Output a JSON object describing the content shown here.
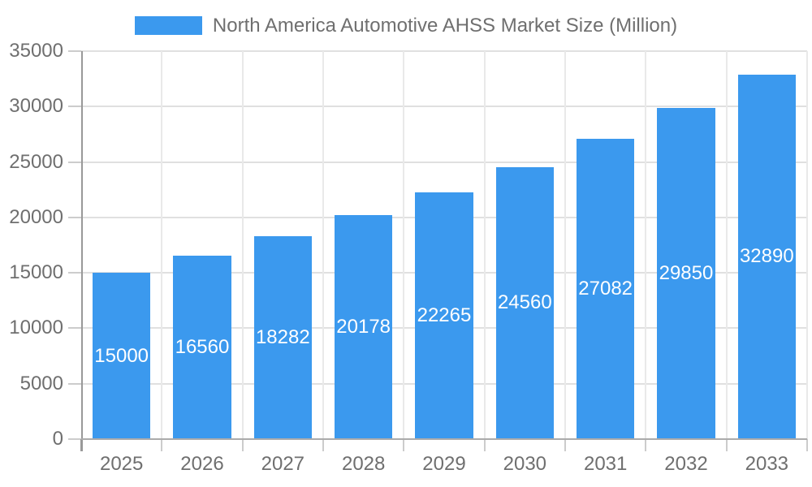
{
  "chart_data": {
    "type": "bar",
    "legend": "North America Automotive AHSS Market Size (Million)",
    "legend_position": "top",
    "categories": [
      "2025",
      "2026",
      "2027",
      "2028",
      "2029",
      "2030",
      "2031",
      "2032",
      "2033"
    ],
    "values": [
      15000,
      16560,
      18282,
      20178,
      22265,
      24560,
      27082,
      29850,
      32890
    ],
    "data_labels_shown": true,
    "xlabel": "",
    "ylabel": "",
    "ylim": [
      0,
      35000
    ],
    "ytick_step": 5000,
    "yticks": [
      0,
      5000,
      10000,
      15000,
      20000,
      25000,
      30000,
      35000
    ],
    "grid": true,
    "colors": {
      "bar": "#3b99ee",
      "bar_label": "#ffffff",
      "axis_text": "#6f6f6f",
      "grid_horizontal": "#e0e0e0",
      "grid_vertical": "#e9e9e9",
      "y_axis_line": "#999999",
      "x_axis_line": "#ababab",
      "tick": "#cccccc",
      "background": "#ffffff"
    }
  }
}
